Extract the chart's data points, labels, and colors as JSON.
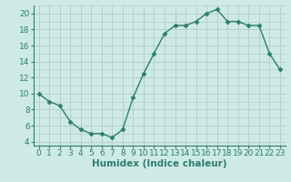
{
  "x": [
    0,
    1,
    2,
    3,
    4,
    5,
    6,
    7,
    8,
    9,
    10,
    11,
    12,
    13,
    14,
    15,
    16,
    17,
    18,
    19,
    20,
    21,
    22,
    23
  ],
  "y": [
    10,
    9,
    8.5,
    6.5,
    5.5,
    5,
    5,
    4.5,
    5.5,
    9.5,
    12.5,
    15,
    17.5,
    18.5,
    18.5,
    19,
    20,
    20.5,
    19,
    19,
    18.5,
    18.5,
    15,
    13
  ],
  "line_color": "#2e7d6e",
  "marker": "D",
  "marker_size": 2.5,
  "bg_color": "#ceeae6",
  "grid_major_color": "#b8ceca",
  "grid_minor_color": "#b8ceca",
  "xlabel": "Humidex (Indice chaleur)",
  "xlim": [
    -0.5,
    23.5
  ],
  "ylim": [
    3.5,
    21.0
  ],
  "yticks": [
    4,
    6,
    8,
    10,
    12,
    14,
    16,
    18,
    20
  ],
  "xticks": [
    0,
    1,
    2,
    3,
    4,
    5,
    6,
    7,
    8,
    9,
    10,
    11,
    12,
    13,
    14,
    15,
    16,
    17,
    18,
    19,
    20,
    21,
    22,
    23
  ],
  "tick_color": "#2e7d6e",
  "axis_color": "#2e7d6e",
  "label_fontsize": 7.5,
  "tick_fontsize": 6.5
}
